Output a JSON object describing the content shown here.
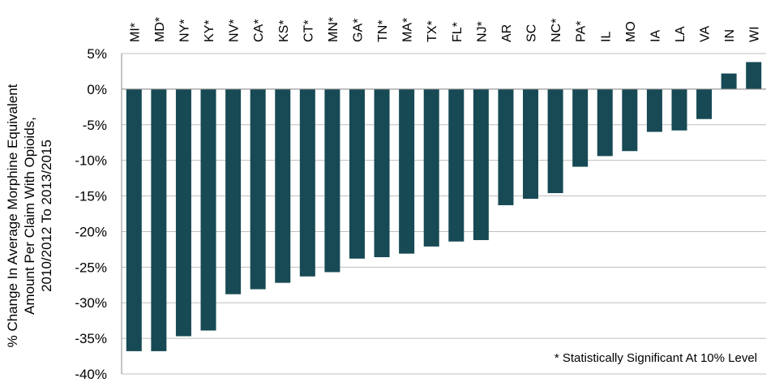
{
  "chart_data": {
    "type": "bar",
    "orientation": "vertical",
    "categories": [
      "MI*",
      "MD*",
      "NY*",
      "KY*",
      "NV*",
      "CA*",
      "KS*",
      "CT*",
      "MN*",
      "GA*",
      "TN*",
      "MA*",
      "TX*",
      "FL*",
      "NJ*",
      "AR",
      "SC",
      "NC*",
      "PA*",
      "IL",
      "MO",
      "IA",
      "LA",
      "VA",
      "IN",
      "WI"
    ],
    "values": [
      -36.8,
      -36.8,
      -34.7,
      -33.9,
      -28.8,
      -28.1,
      -27.2,
      -26.3,
      -25.7,
      -23.8,
      -23.6,
      -23.1,
      -22.1,
      -21.4,
      -21.2,
      -16.3,
      -15.4,
      -14.6,
      -10.9,
      -9.4,
      -8.7,
      -6.0,
      -5.8,
      -4.2,
      2.2,
      3.8
    ],
    "yticks": [
      5,
      0,
      -5,
      -10,
      -15,
      -20,
      -25,
      -30,
      -35,
      -40
    ],
    "ytick_labels": [
      "5%",
      "0%",
      "-5%",
      "-10%",
      "-15%",
      "-20%",
      "-25%",
      "-30%",
      "-35%",
      "-40%"
    ],
    "ylim": [
      -40,
      5
    ],
    "ylabel_lines": [
      "% Change In Average Morphine Equivalent",
      "Amount Per Claim With Opioids,",
      "2010/2012 To 2013/2015"
    ],
    "xlabel": "",
    "title": "",
    "annotation": "* Statistically Significant At 10% Level",
    "category_label_position": "top",
    "grid": true,
    "bar_color": "#174A55",
    "grid_color": "#bfbfbf"
  }
}
